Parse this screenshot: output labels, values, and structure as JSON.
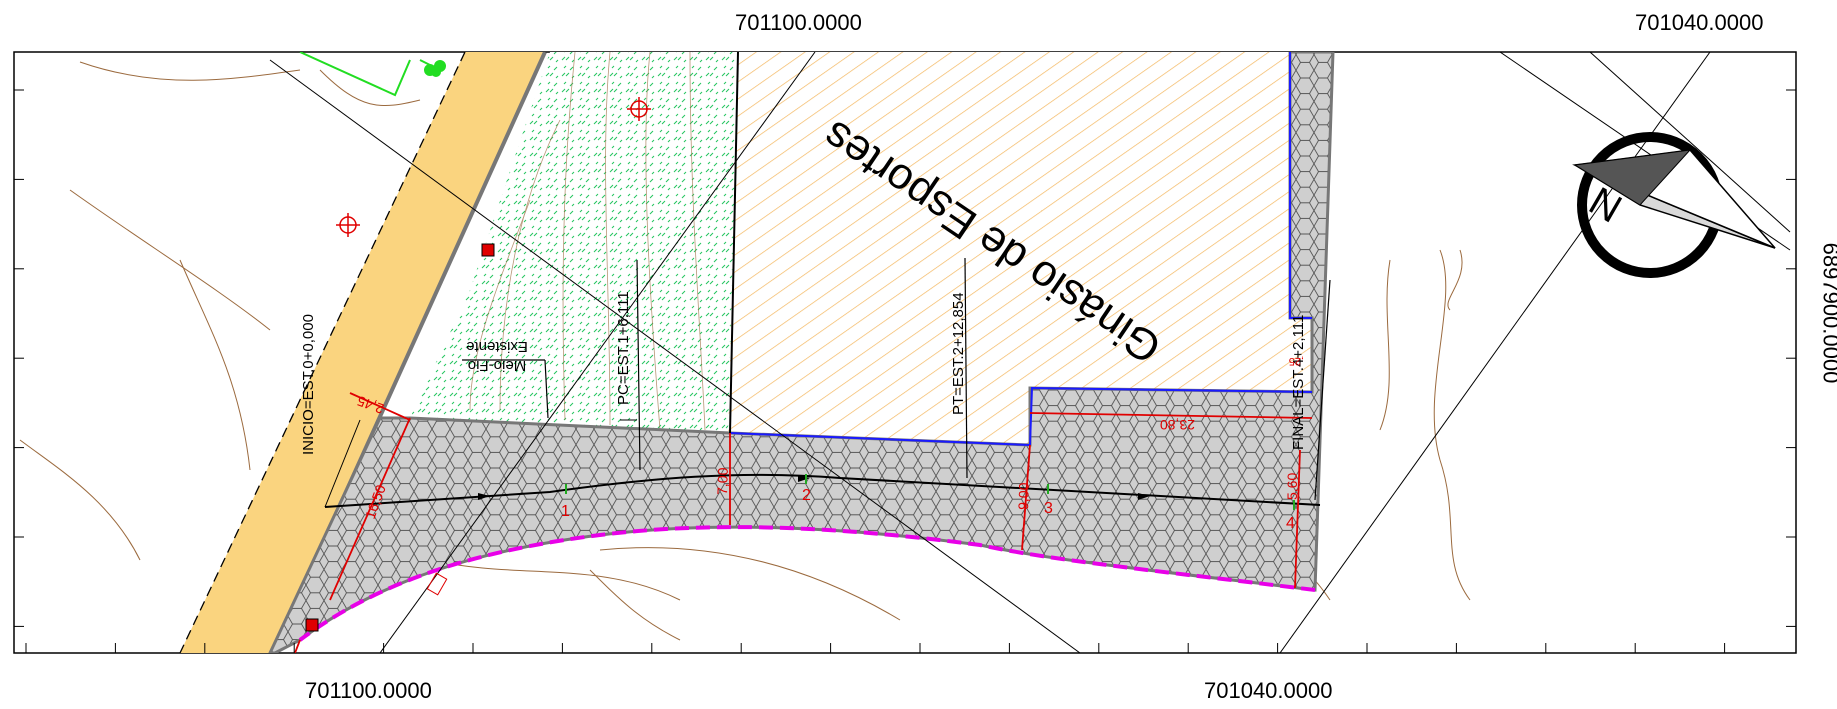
{
  "coords": {
    "top_left": "701100.0000",
    "top_right": "701040.0000",
    "bottom_left": "701100.0000",
    "bottom_right": "701040.0000",
    "right_vertical": "6897900.0000"
  },
  "map": {
    "building_label": "Ginásio de Esportes",
    "curb_label_line1": "Meio-Fio",
    "curb_label_line2": "Existente",
    "stations": [
      "INICIO=EST.0+0,000",
      "PC=EST.1+6,111",
      "PT=EST.2+12,854",
      "FINAL=EST.4+2,111"
    ],
    "station_numbers": [
      "1",
      "2",
      "3",
      "4"
    ],
    "dimensions": {
      "d_2_45": "2,45",
      "d_16_50": "16,50",
      "d_7_00": "7,00",
      "d_9_00": "9,00",
      "d_5_60": "5,60",
      "d_23_80": "23,80",
      "d_25": ",25"
    },
    "north_label": "N",
    "colors": {
      "road": "#fad47f",
      "paving": "#c9c9c9",
      "green_hatch": "#22c55e",
      "orange_hatch": "#f4b860",
      "dimension_red": "#e00000",
      "magenta_edge": "#e800e8",
      "blue_edge": "#1a1aff",
      "contour": "#9b6a3e"
    }
  }
}
